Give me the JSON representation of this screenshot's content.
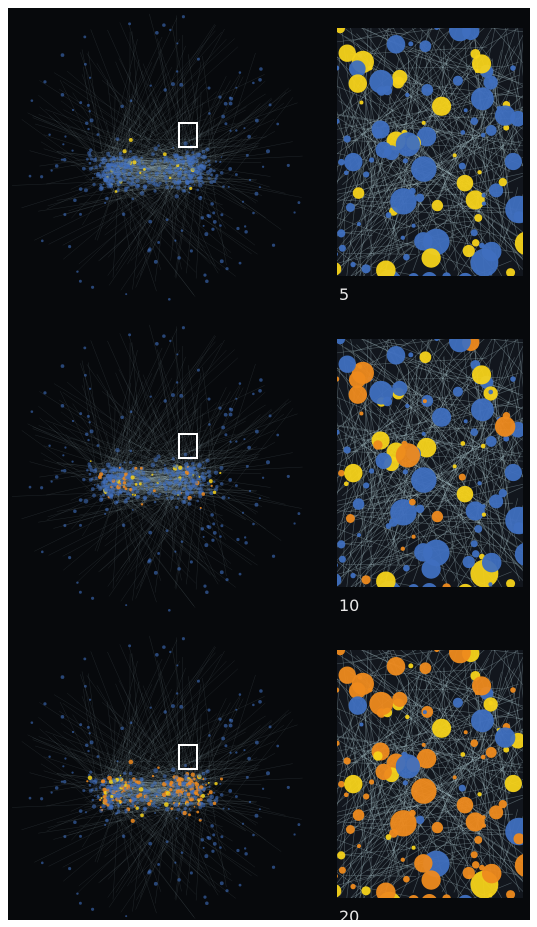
{
  "figure": {
    "colors": {
      "background": "#07090c",
      "node_blue": "#3f6fbf",
      "node_yellow": "#f6d21a",
      "node_orange": "#ee8a1e",
      "edge": "#b9d6dc",
      "zoom_box": "#ffffff",
      "label": "#e8e8e8"
    },
    "panels": [
      {
        "label": "5",
        "adopted_yellow_share": 0.2,
        "adopted_orange_share": 0.0
      },
      {
        "label": "10",
        "adopted_yellow_share": 0.22,
        "adopted_orange_share": 0.18
      },
      {
        "label": "20",
        "adopted_yellow_share": 0.2,
        "adopted_orange_share": 0.62
      }
    ]
  }
}
